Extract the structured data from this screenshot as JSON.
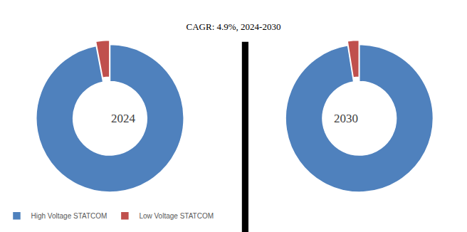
{
  "chart_data": [
    {
      "type": "pie",
      "title": "CAGR: 4.9%, 2024-2030",
      "annotations": [
        "2024"
      ],
      "categories": [
        "High Voltage STATCOM",
        "Low Voltage STATCOM"
      ],
      "values": [
        97,
        3
      ],
      "colors": [
        "#4f81bd",
        "#c0504d"
      ],
      "legend": "bottom"
    },
    {
      "type": "pie",
      "annotations": [
        "2030"
      ],
      "categories": [
        "High Voltage STATCOM",
        "Low Voltage STATCOM"
      ],
      "values": [
        97.5,
        2.5
      ],
      "colors": [
        "#4f81bd",
        "#c0504d"
      ],
      "legend": "bottom"
    }
  ]
}
